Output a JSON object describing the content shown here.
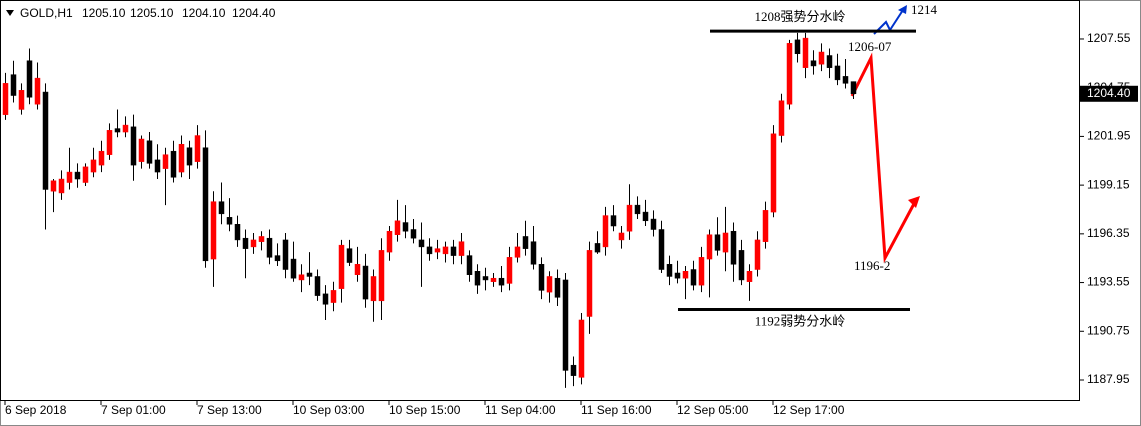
{
  "chart_data": {
    "type": "candlestick",
    "header": {
      "symbol": "GOLD,H1",
      "ohlc": [
        "1205.10",
        "1205.10",
        "1204.10",
        "1204.40"
      ]
    },
    "up_color": "#ff0000",
    "down_color": "#000000",
    "candles": {
      "open": [
        1203.2,
        1205.5,
        1203.5,
        1206.3,
        1203.8,
        1204.5,
        1198.8,
        1198.7,
        1199.3,
        1199.9,
        1199.3,
        1199.9,
        1200.3,
        1200.9,
        1202.4,
        1202.2,
        1202.5,
        1200.5,
        1201.7,
        1200.6,
        1200.1,
        1201.1,
        1199.9,
        1201.3,
        1200.5,
        1201.3,
        1194.9,
        1198.2,
        1197.3,
        1196.9,
        1196.1,
        1195.6,
        1195.9,
        1196.1,
        1195.1,
        1196.0,
        1194.9,
        1193.7,
        1194.1,
        1193.9,
        1192.9,
        1192.4,
        1193.2,
        1195.5,
        1194.0,
        1194.5,
        1192.5,
        1192.5,
        1195.3,
        1196.3,
        1197.0,
        1196.6,
        1196.0,
        1195.6,
        1195.3,
        1195.2,
        1195.6,
        1195.1,
        1195.1,
        1194.2,
        1193.9,
        1193.6,
        1193.8,
        1193.5,
        1195.0,
        1196.2,
        1195.9,
        1194.6,
        1193.0,
        1193.8,
        1193.7,
        1188.8,
        1188.1,
        1191.6,
        1195.8,
        1195.6,
        1197.4,
        1196.0,
        1196.5,
        1198.0,
        1197.6,
        1197.2,
        1196.6,
        1194.6,
        1194.1,
        1193.8,
        1194.3,
        1193.4,
        1194.9,
        1196.3,
        1195.3,
        1196.5,
        1195.4,
        1193.6,
        1194.3,
        1195.9,
        1197.6,
        1202.0,
        1203.8,
        1207.5,
        1205.9,
        1206.3,
        1206.1,
        1206.6,
        1206.0,
        1205.4,
        1205.1
      ],
      "high": [
        1205.6,
        1206.3,
        1205.0,
        1207.0,
        1206.2,
        1205.0,
        1199.5,
        1200.0,
        1201.3,
        1200.4,
        1200.4,
        1201.3,
        1201.7,
        1202.7,
        1203.5,
        1203.1,
        1203.2,
        1202.0,
        1202.2,
        1201.5,
        1201.3,
        1201.7,
        1202.0,
        1201.7,
        1202.6,
        1202.3,
        1198.8,
        1199.3,
        1198.4,
        1197.4,
        1196.6,
        1196.4,
        1196.5,
        1196.6,
        1195.8,
        1196.4,
        1195.9,
        1194.6,
        1195.3,
        1194.3,
        1193.4,
        1193.6,
        1196.0,
        1196.0,
        1195.6,
        1195.2,
        1194.3,
        1196.1,
        1196.8,
        1198.3,
        1198.0,
        1197.2,
        1197.0,
        1196.1,
        1196.0,
        1195.9,
        1196.0,
        1196.4,
        1195.4,
        1194.6,
        1194.4,
        1194.1,
        1194.5,
        1195.6,
        1196.4,
        1197.1,
        1196.8,
        1195.0,
        1194.2,
        1194.3,
        1194.1,
        1189.3,
        1191.8,
        1195.9,
        1196.5,
        1197.9,
        1198.0,
        1196.8,
        1199.2,
        1198.5,
        1198.3,
        1197.7,
        1197.1,
        1195.1,
        1194.8,
        1194.5,
        1194.8,
        1195.6,
        1196.6,
        1197.3,
        1197.9,
        1197.0,
        1196.0,
        1194.6,
        1196.5,
        1198.2,
        1202.6,
        1204.4,
        1207.5,
        1207.9,
        1207.9,
        1206.9,
        1207.3,
        1207.0,
        1206.7,
        1206.4,
        1205.1
      ],
      "low": [
        1202.9,
        1203.9,
        1203.2,
        1203.8,
        1203.5,
        1196.6,
        1197.6,
        1198.3,
        1198.9,
        1199.0,
        1199.1,
        1199.6,
        1199.9,
        1200.6,
        1201.9,
        1201.9,
        1199.4,
        1200.1,
        1200.1,
        1199.5,
        1198.0,
        1199.3,
        1199.6,
        1199.5,
        1200.1,
        1194.4,
        1193.3,
        1196.9,
        1196.5,
        1195.6,
        1193.8,
        1195.2,
        1195.4,
        1194.6,
        1194.5,
        1193.8,
        1193.6,
        1193.0,
        1193.4,
        1192.5,
        1191.4,
        1191.9,
        1192.4,
        1194.5,
        1193.6,
        1192.1,
        1191.3,
        1191.4,
        1194.8,
        1195.9,
        1196.1,
        1195.8,
        1193.3,
        1194.8,
        1194.9,
        1194.7,
        1194.6,
        1194.6,
        1193.6,
        1192.9,
        1193.1,
        1193.3,
        1193.0,
        1193.1,
        1194.7,
        1195.1,
        1194.3,
        1192.6,
        1192.4,
        1192.2,
        1187.5,
        1187.6,
        1187.7,
        1190.6,
        1195.2,
        1195.1,
        1196.5,
        1195.5,
        1196.0,
        1197.2,
        1196.8,
        1196.2,
        1194.1,
        1193.4,
        1193.5,
        1192.6,
        1193.1,
        1193.0,
        1192.7,
        1195.1,
        1194.2,
        1193.6,
        1193.4,
        1192.5,
        1193.9,
        1195.5,
        1197.3,
        1201.6,
        1203.5,
        1206.2,
        1205.3,
        1205.5,
        1205.7,
        1205.3,
        1204.9,
        1204.7,
        1204.1
      ],
      "close": [
        1205.0,
        1204.3,
        1204.6,
        1204.2,
        1205.3,
        1198.9,
        1199.4,
        1199.5,
        1199.9,
        1199.5,
        1200.2,
        1200.6,
        1201.1,
        1202.3,
        1202.2,
        1202.6,
        1200.3,
        1201.8,
        1200.4,
        1199.9,
        1200.9,
        1199.6,
        1201.5,
        1200.3,
        1202.0,
        1194.8,
        1198.2,
        1197.5,
        1196.9,
        1196.0,
        1195.5,
        1196.0,
        1196.2,
        1195.0,
        1194.8,
        1194.3,
        1193.8,
        1194.0,
        1193.9,
        1192.8,
        1192.3,
        1193.1,
        1195.7,
        1194.7,
        1194.6,
        1192.6,
        1193.9,
        1195.4,
        1196.5,
        1197.1,
        1196.5,
        1196.1,
        1195.6,
        1195.2,
        1195.5,
        1195.6,
        1195.1,
        1195.9,
        1194.0,
        1193.4,
        1193.7,
        1193.8,
        1193.4,
        1195.0,
        1195.6,
        1195.5,
        1194.6,
        1193.1,
        1193.9,
        1192.7,
        1188.5,
        1188.2,
        1191.4,
        1195.4,
        1195.3,
        1197.4,
        1196.8,
        1196.4,
        1198.0,
        1197.5,
        1197.1,
        1196.6,
        1194.3,
        1193.9,
        1193.8,
        1194.2,
        1193.4,
        1195.0,
        1196.3,
        1195.4,
        1196.4,
        1194.6,
        1193.7,
        1194.2,
        1196.0,
        1197.7,
        1202.1,
        1204.0,
        1207.3,
        1206.7,
        1207.6,
        1206.0,
        1206.8,
        1205.9,
        1205.2,
        1205.0,
        1204.4
      ]
    },
    "xlim": [
      -0.625,
      134.375
    ],
    "xticks": [
      {
        "value": 0,
        "label": "6 Sep 2018"
      },
      {
        "value": 12,
        "label": "7 Sep 01:00"
      },
      {
        "value": 24,
        "label": "7 Sep 13:00"
      },
      {
        "value": 36,
        "label": "10 Sep 03:00"
      },
      {
        "value": 48,
        "label": "10 Sep 15:00"
      },
      {
        "value": 60,
        "label": "11 Sep 04:00"
      },
      {
        "value": 72,
        "label": "11 Sep 16:00"
      },
      {
        "value": 84,
        "label": "12 Sep 05:00"
      },
      {
        "value": 96,
        "label": "12 Sep 17:00"
      }
    ],
    "ylim": [
      1186.8,
      1209.79
    ],
    "yticks": [
      1207.55,
      1204.75,
      1201.95,
      1199.15,
      1196.35,
      1193.55,
      1190.75,
      1187.95
    ],
    "last_price": {
      "value": 1204.4,
      "label": "1204.40"
    },
    "levels": [
      {
        "value": 1208,
        "label": "1208强势分水岭"
      },
      {
        "value": 1192,
        "label": "1192弱势分水岭"
      }
    ],
    "annotations": [
      "1206-07",
      "1196-2",
      "1214"
    ]
  }
}
